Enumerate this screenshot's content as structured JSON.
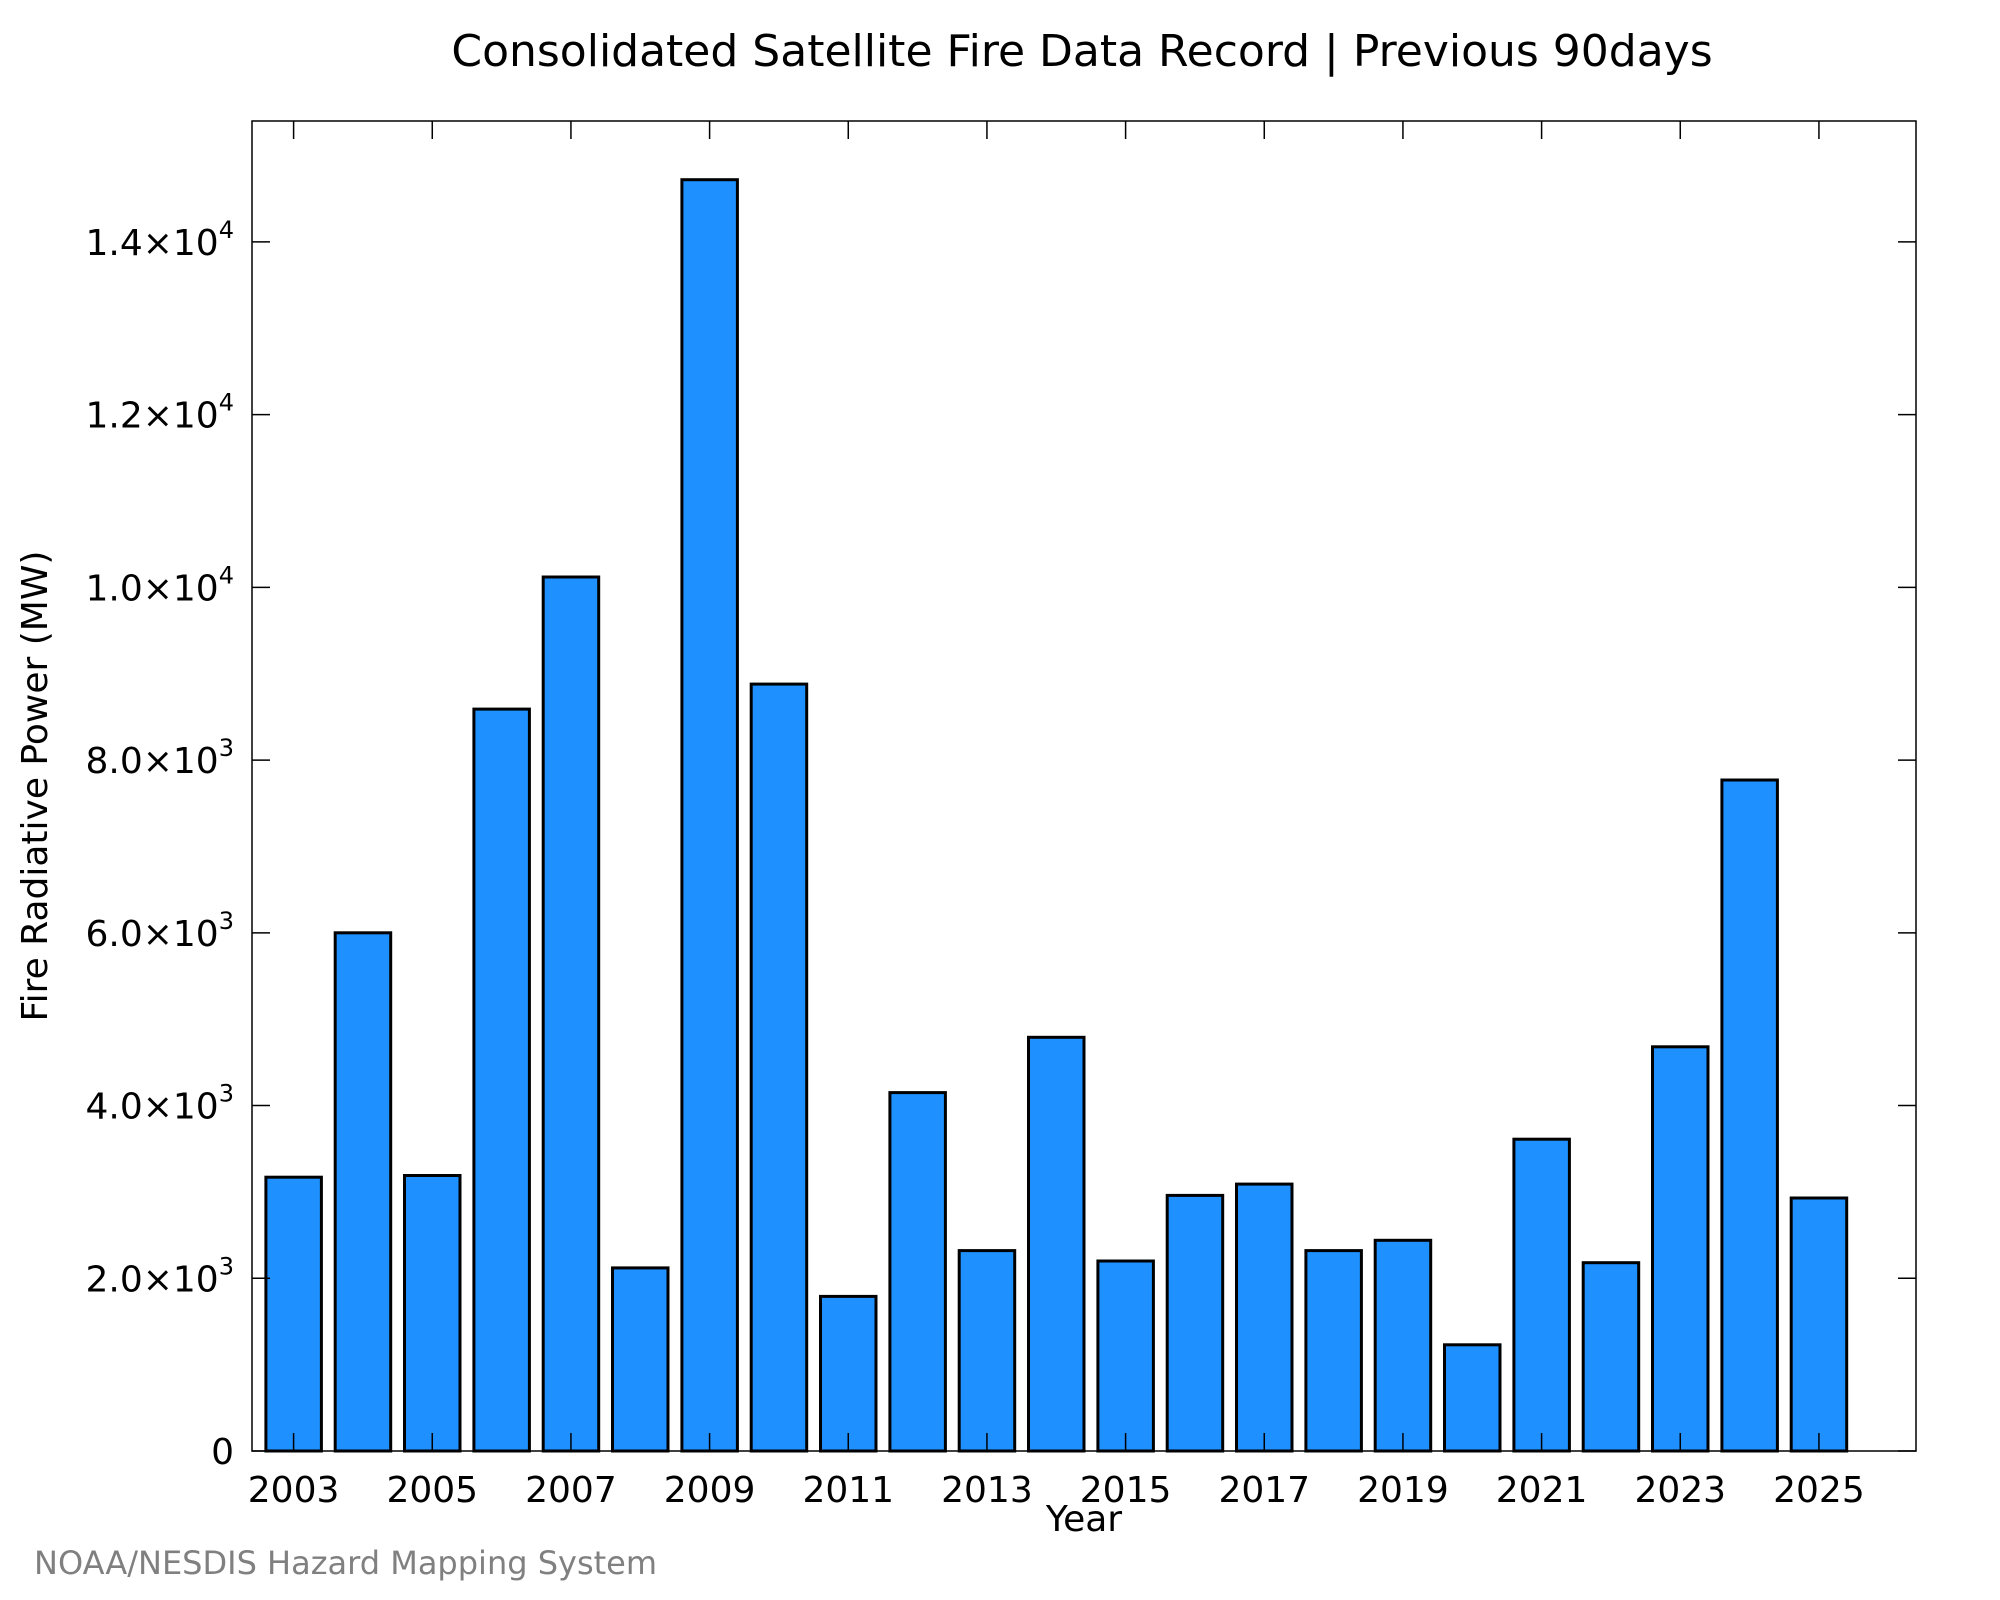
{
  "chart_data": {
    "type": "bar",
    "title": "Consolidated Satellite Fire Data Record | Previous 90days",
    "xlabel": "Year",
    "ylabel": "Fire Radiative Power (MW)",
    "categories": [
      "2003",
      "2004",
      "2005",
      "2006",
      "2007",
      "2008",
      "2009",
      "2010",
      "2011",
      "2012",
      "2013",
      "2014",
      "2015",
      "2016",
      "2017",
      "2018",
      "2019",
      "2020",
      "2021",
      "2022",
      "2023",
      "2024",
      "2025"
    ],
    "values": [
      3170,
      6000,
      3190,
      8590,
      10120,
      2120,
      14720,
      8880,
      1790,
      4150,
      2320,
      4790,
      2200,
      2960,
      3090,
      2320,
      2440,
      1230,
      3610,
      2180,
      4680,
      7770,
      2930
    ],
    "xlim": [
      2002.4,
      2026.4
    ],
    "ylim": [
      0,
      15400
    ],
    "x_tick_values": [
      2003,
      2005,
      2007,
      2009,
      2011,
      2013,
      2015,
      2017,
      2019,
      2021,
      2023,
      2025
    ],
    "y_ticks": [
      {
        "value": 0,
        "mantissa": "0",
        "exp": ""
      },
      {
        "value": 2000,
        "mantissa": "2.0×10",
        "exp": "3"
      },
      {
        "value": 4000,
        "mantissa": "4.0×10",
        "exp": "3"
      },
      {
        "value": 6000,
        "mantissa": "6.0×10",
        "exp": "3"
      },
      {
        "value": 8000,
        "mantissa": "8.0×10",
        "exp": "3"
      },
      {
        "value": 10000,
        "mantissa": "1.0×10",
        "exp": "4"
      },
      {
        "value": 12000,
        "mantissa": "1.2×10",
        "exp": "4"
      },
      {
        "value": 14000,
        "mantissa": "1.4×10",
        "exp": "4"
      }
    ],
    "bar_color": "#1e90ff",
    "grid": false,
    "legend": "none"
  },
  "footer": {
    "credit": "NOAA/NESDIS Hazard Mapping System"
  }
}
